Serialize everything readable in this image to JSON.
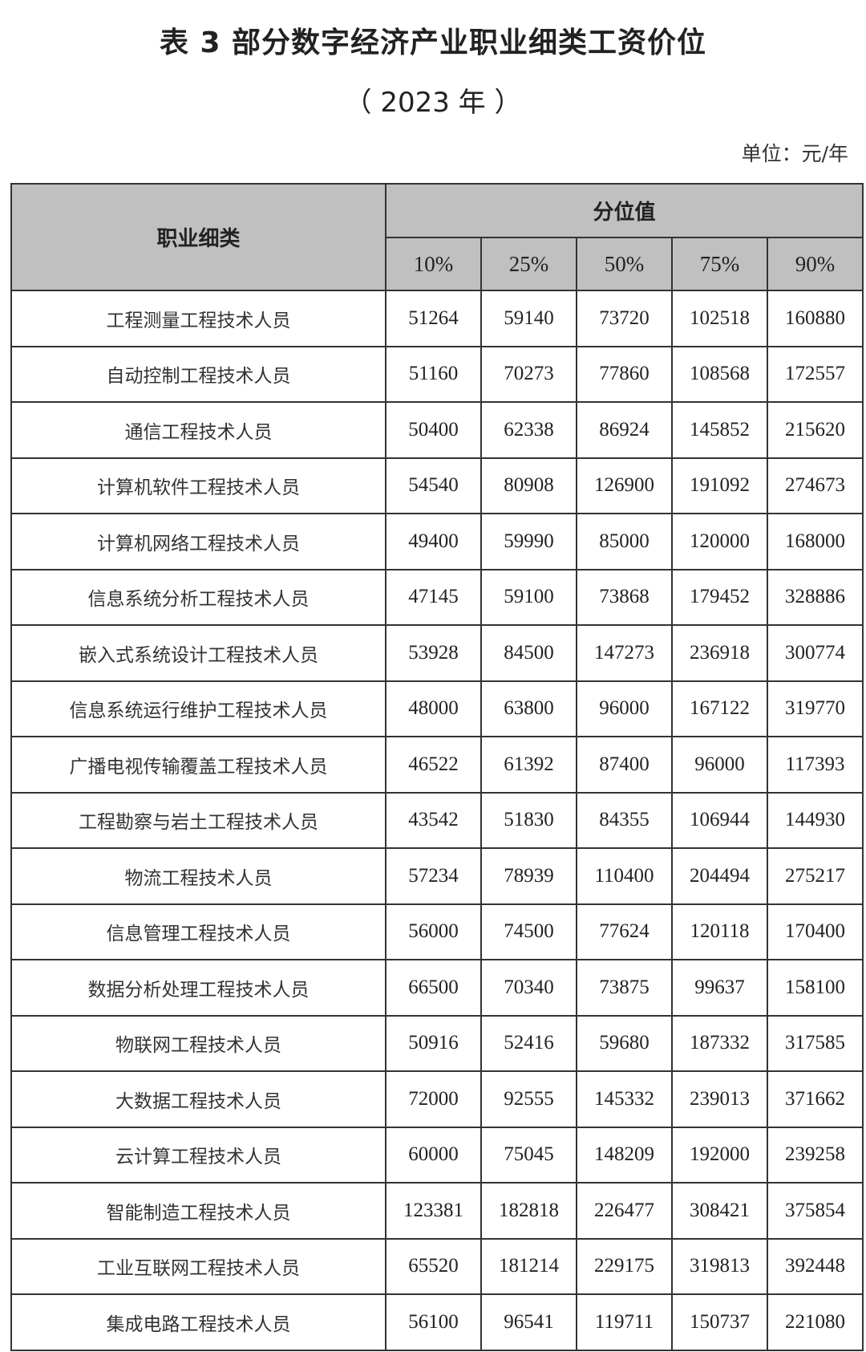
{
  "title": "表 3  部分数字经济产业职业细类工资价位",
  "subtitle": "（ 2023 年 ）",
  "unit": "单位：元/年",
  "table": {
    "header_name": "职业细类",
    "header_group": "分位值",
    "percentiles": [
      "10%",
      "25%",
      "50%",
      "75%",
      "90%"
    ],
    "header_bg": "#c0c0c0",
    "rows": [
      {
        "name": "工程测量工程技术人员",
        "values": [
          "51264",
          "59140",
          "73720",
          "102518",
          "160880"
        ]
      },
      {
        "name": "自动控制工程技术人员",
        "values": [
          "51160",
          "70273",
          "77860",
          "108568",
          "172557"
        ]
      },
      {
        "name": "通信工程技术人员",
        "values": [
          "50400",
          "62338",
          "86924",
          "145852",
          "215620"
        ]
      },
      {
        "name": "计算机软件工程技术人员",
        "values": [
          "54540",
          "80908",
          "126900",
          "191092",
          "274673"
        ]
      },
      {
        "name": "计算机网络工程技术人员",
        "values": [
          "49400",
          "59990",
          "85000",
          "120000",
          "168000"
        ]
      },
      {
        "name": "信息系统分析工程技术人员",
        "values": [
          "47145",
          "59100",
          "73868",
          "179452",
          "328886"
        ]
      },
      {
        "name": "嵌入式系统设计工程技术人员",
        "values": [
          "53928",
          "84500",
          "147273",
          "236918",
          "300774"
        ]
      },
      {
        "name": "信息系统运行维护工程技术人员",
        "values": [
          "48000",
          "63800",
          "96000",
          "167122",
          "319770"
        ]
      },
      {
        "name": "广播电视传输覆盖工程技术人员",
        "values": [
          "46522",
          "61392",
          "87400",
          "96000",
          "117393"
        ]
      },
      {
        "name": "工程勘察与岩土工程技术人员",
        "values": [
          "43542",
          "51830",
          "84355",
          "106944",
          "144930"
        ]
      },
      {
        "name": "物流工程技术人员",
        "values": [
          "57234",
          "78939",
          "110400",
          "204494",
          "275217"
        ]
      },
      {
        "name": "信息管理工程技术人员",
        "values": [
          "56000",
          "74500",
          "77624",
          "120118",
          "170400"
        ]
      },
      {
        "name": "数据分析处理工程技术人员",
        "values": [
          "66500",
          "70340",
          "73875",
          "99637",
          "158100"
        ]
      },
      {
        "name": "物联网工程技术人员",
        "values": [
          "50916",
          "52416",
          "59680",
          "187332",
          "317585"
        ]
      },
      {
        "name": "大数据工程技术人员",
        "values": [
          "72000",
          "92555",
          "145332",
          "239013",
          "371662"
        ]
      },
      {
        "name": "云计算工程技术人员",
        "values": [
          "60000",
          "75045",
          "148209",
          "192000",
          "239258"
        ]
      },
      {
        "name": "智能制造工程技术人员",
        "values": [
          "123381",
          "182818",
          "226477",
          "308421",
          "375854"
        ]
      },
      {
        "name": "工业互联网工程技术人员",
        "values": [
          "65520",
          "181214",
          "229175",
          "319813",
          "392448"
        ]
      },
      {
        "name": "集成电路工程技术人员",
        "values": [
          "56100",
          "96541",
          "119711",
          "150737",
          "221080"
        ]
      }
    ]
  }
}
